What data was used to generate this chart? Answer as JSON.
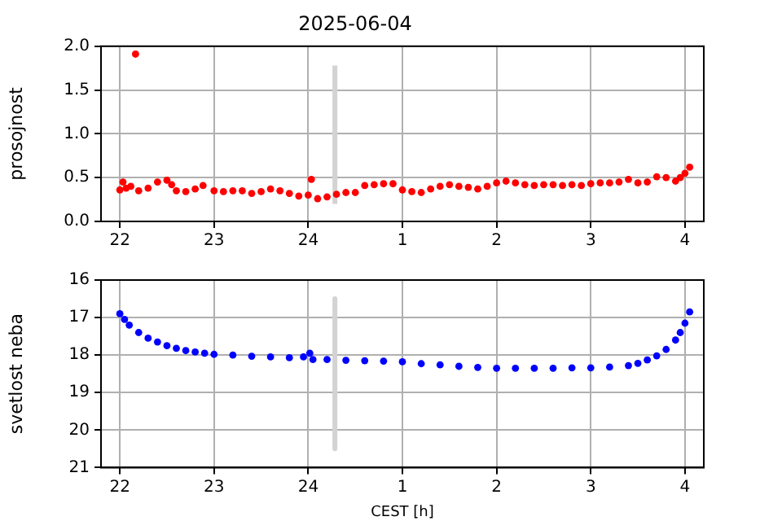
{
  "chart_data": [
    {
      "type": "scatter",
      "title": "2025-06-04",
      "ylabel": "prosojnost",
      "xlim": [
        "2025-06-03T21:48",
        "2025-06-04T04:12"
      ],
      "ylim": [
        0,
        2
      ],
      "xticks": [
        {
          "value": "2025-06-03T22:00",
          "label": "22"
        },
        {
          "value": "2025-06-03T23:00",
          "label": "23"
        },
        {
          "value": "2025-06-04T00:00",
          "label": "24"
        },
        {
          "value": "2025-06-04T01:00",
          "label": "1"
        },
        {
          "value": "2025-06-04T02:00",
          "label": "2"
        },
        {
          "value": "2025-06-04T03:00",
          "label": "3"
        },
        {
          "value": "2025-06-04T04:00",
          "label": "4"
        }
      ],
      "yticks": [
        {
          "value": 0,
          "label": "0.0"
        },
        {
          "value": 0.5,
          "label": "0.5"
        },
        {
          "value": 1,
          "label": "1.0"
        },
        {
          "value": 1.5,
          "label": "1.5"
        },
        {
          "value": 2,
          "label": "2.0"
        }
      ],
      "grid": true,
      "series": [
        {
          "marker": "circle",
          "color": "#ff0000",
          "x": [
            "2025-06-03T22:00",
            "2025-06-03T22:02",
            "2025-06-03T22:04",
            "2025-06-03T22:07",
            "2025-06-03T22:10",
            "2025-06-03T22:12",
            "2025-06-03T22:18",
            "2025-06-03T22:24",
            "2025-06-03T22:30",
            "2025-06-03T22:33",
            "2025-06-03T22:36",
            "2025-06-03T22:42",
            "2025-06-03T22:48",
            "2025-06-03T22:53",
            "2025-06-03T23:00",
            "2025-06-03T23:06",
            "2025-06-03T23:12",
            "2025-06-03T23:18",
            "2025-06-03T23:24",
            "2025-06-03T23:30",
            "2025-06-03T23:36",
            "2025-06-03T23:42",
            "2025-06-03T23:48",
            "2025-06-03T23:54",
            "2025-06-04T00:00",
            "2025-06-04T00:02",
            "2025-06-04T00:06",
            "2025-06-04T00:12",
            "2025-06-04T00:18",
            "2025-06-04T00:24",
            "2025-06-04T00:30",
            "2025-06-04T00:36",
            "2025-06-04T00:42",
            "2025-06-04T00:48",
            "2025-06-04T00:54",
            "2025-06-04T01:00",
            "2025-06-04T01:06",
            "2025-06-04T01:12",
            "2025-06-04T01:18",
            "2025-06-04T01:24",
            "2025-06-04T01:30",
            "2025-06-04T01:36",
            "2025-06-04T01:42",
            "2025-06-04T01:48",
            "2025-06-04T01:54",
            "2025-06-04T02:00",
            "2025-06-04T02:06",
            "2025-06-04T02:12",
            "2025-06-04T02:18",
            "2025-06-04T02:24",
            "2025-06-04T02:30",
            "2025-06-04T02:36",
            "2025-06-04T02:42",
            "2025-06-04T02:48",
            "2025-06-04T02:54",
            "2025-06-04T03:00",
            "2025-06-04T03:06",
            "2025-06-04T03:12",
            "2025-06-04T03:18",
            "2025-06-04T03:24",
            "2025-06-04T03:30",
            "2025-06-04T03:36",
            "2025-06-04T03:42",
            "2025-06-04T03:48",
            "2025-06-04T03:54",
            "2025-06-04T03:57",
            "2025-06-04T04:00",
            "2025-06-04T04:03"
          ],
          "values": [
            0.36,
            0.45,
            0.38,
            0.4,
            1.91,
            0.35,
            0.38,
            0.45,
            0.47,
            0.42,
            0.35,
            0.34,
            0.37,
            0.41,
            0.35,
            0.34,
            0.35,
            0.35,
            0.32,
            0.34,
            0.37,
            0.35,
            0.32,
            0.29,
            0.3,
            0.48,
            0.26,
            0.28,
            0.31,
            0.33,
            0.33,
            0.41,
            0.42,
            0.43,
            0.43,
            0.36,
            0.34,
            0.33,
            0.37,
            0.4,
            0.42,
            0.4,
            0.39,
            0.37,
            0.4,
            0.44,
            0.46,
            0.44,
            0.42,
            0.41,
            0.42,
            0.42,
            0.41,
            0.42,
            0.41,
            0.43,
            0.44,
            0.44,
            0.45,
            0.48,
            0.44,
            0.45,
            0.51,
            0.5,
            0.46,
            0.5,
            0.55,
            0.62
          ]
        },
        {
          "type": "line",
          "color": "#d3d3d3",
          "x": [
            "2025-06-04T00:17",
            "2025-06-04T00:17"
          ],
          "values": [
            0.2,
            1.78
          ]
        }
      ]
    },
    {
      "type": "scatter",
      "xlabel": "CEST [h]",
      "ylabel": "svetlost neba",
      "xlim": [
        "2025-06-03T21:48",
        "2025-06-04T04:12"
      ],
      "ylim": [
        21,
        16
      ],
      "xticks": [
        {
          "value": "2025-06-03T22:00",
          "label": "22"
        },
        {
          "value": "2025-06-03T23:00",
          "label": "23"
        },
        {
          "value": "2025-06-04T00:00",
          "label": "24"
        },
        {
          "value": "2025-06-04T01:00",
          "label": "1"
        },
        {
          "value": "2025-06-04T02:00",
          "label": "2"
        },
        {
          "value": "2025-06-04T03:00",
          "label": "3"
        },
        {
          "value": "2025-06-04T04:00",
          "label": "4"
        }
      ],
      "yticks": [
        16,
        17,
        18,
        19,
        20,
        21
      ],
      "grid": true,
      "series": [
        {
          "marker": "circle",
          "color": "#0000ff",
          "x": [
            "2025-06-03T22:00",
            "2025-06-03T22:03",
            "2025-06-03T22:06",
            "2025-06-03T22:12",
            "2025-06-03T22:18",
            "2025-06-03T22:24",
            "2025-06-03T22:30",
            "2025-06-03T22:36",
            "2025-06-03T22:42",
            "2025-06-03T22:48",
            "2025-06-03T22:54",
            "2025-06-03T23:00",
            "2025-06-03T23:12",
            "2025-06-03T23:24",
            "2025-06-03T23:36",
            "2025-06-03T23:48",
            "2025-06-03T23:57",
            "2025-06-04T00:01",
            "2025-06-04T00:03",
            "2025-06-04T00:12",
            "2025-06-04T00:24",
            "2025-06-04T00:36",
            "2025-06-04T00:48",
            "2025-06-04T01:00",
            "2025-06-04T01:12",
            "2025-06-04T01:24",
            "2025-06-04T01:36",
            "2025-06-04T01:48",
            "2025-06-04T02:00",
            "2025-06-04T02:12",
            "2025-06-04T02:24",
            "2025-06-04T02:36",
            "2025-06-04T02:48",
            "2025-06-04T03:00",
            "2025-06-04T03:12",
            "2025-06-04T03:24",
            "2025-06-04T03:30",
            "2025-06-04T03:36",
            "2025-06-04T03:42",
            "2025-06-04T03:48",
            "2025-06-04T03:54",
            "2025-06-04T03:57",
            "2025-06-04T04:00",
            "2025-06-04T04:03"
          ],
          "values": [
            16.9,
            17.05,
            17.2,
            17.4,
            17.55,
            17.65,
            17.75,
            17.82,
            17.88,
            17.92,
            17.95,
            17.98,
            18.0,
            18.03,
            18.05,
            18.07,
            18.05,
            17.95,
            18.12,
            18.12,
            18.14,
            18.15,
            18.16,
            18.18,
            18.23,
            18.26,
            18.3,
            18.33,
            18.35,
            18.35,
            18.35,
            18.35,
            18.34,
            18.34,
            18.32,
            18.28,
            18.22,
            18.13,
            18.02,
            17.85,
            17.6,
            17.4,
            17.15,
            16.85
          ]
        },
        {
          "type": "line",
          "color": "#d3d3d3",
          "x": [
            "2025-06-04T00:17",
            "2025-06-04T00:17"
          ],
          "values": [
            16.5,
            20.5
          ]
        }
      ]
    }
  ]
}
